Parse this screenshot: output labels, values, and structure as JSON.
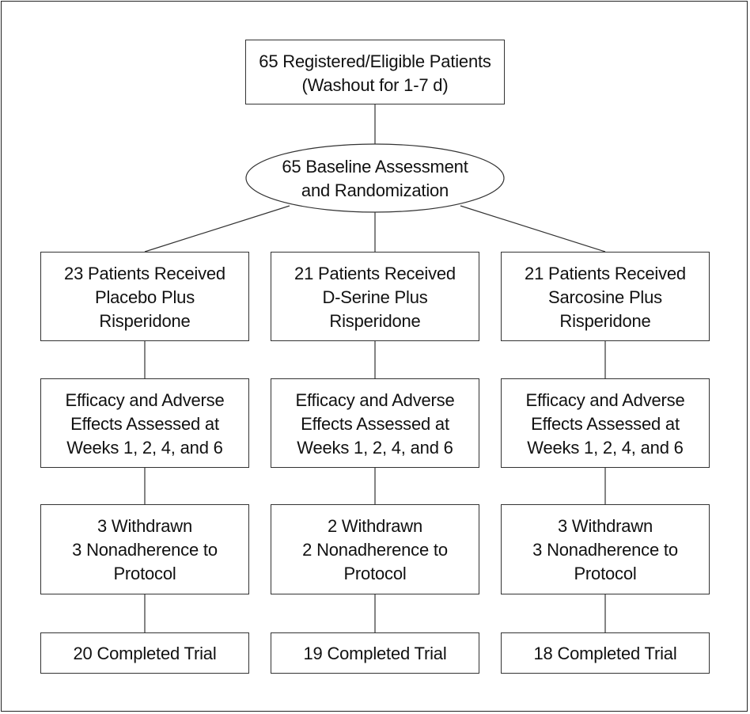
{
  "top": {
    "line1": "65 Registered/Eligible Patients",
    "line2": "(Washout for 1-7 d)"
  },
  "baseline": {
    "line1": "65 Baseline Assessment",
    "line2": "and Randomization"
  },
  "arms": [
    {
      "received": [
        "23 Patients Received",
        "Placebo Plus",
        "Risperidone"
      ],
      "assessed": [
        "Efficacy and Adverse",
        "Effects Assessed at",
        "Weeks 1, 2, 4, and 6"
      ],
      "withdrawn": [
        "3 Withdrawn",
        "3 Nonadherence to",
        "Protocol"
      ],
      "completed": "20 Completed Trial"
    },
    {
      "received": [
        "21 Patients Received",
        "D-Serine Plus",
        "Risperidone"
      ],
      "assessed": [
        "Efficacy and Adverse",
        "Effects Assessed at",
        "Weeks 1, 2, 4, and 6"
      ],
      "withdrawn": [
        "2 Withdrawn",
        "2 Nonadherence to",
        "Protocol"
      ],
      "completed": "19 Completed Trial"
    },
    {
      "received": [
        "21 Patients Received",
        "Sarcosine Plus",
        "Risperidone"
      ],
      "assessed": [
        "Efficacy and Adverse",
        "Effects Assessed at",
        "Weeks 1, 2, 4, and 6"
      ],
      "withdrawn": [
        "3 Withdrawn",
        "3 Nonadherence to",
        "Protocol"
      ],
      "completed": "18 Completed Trial"
    }
  ]
}
